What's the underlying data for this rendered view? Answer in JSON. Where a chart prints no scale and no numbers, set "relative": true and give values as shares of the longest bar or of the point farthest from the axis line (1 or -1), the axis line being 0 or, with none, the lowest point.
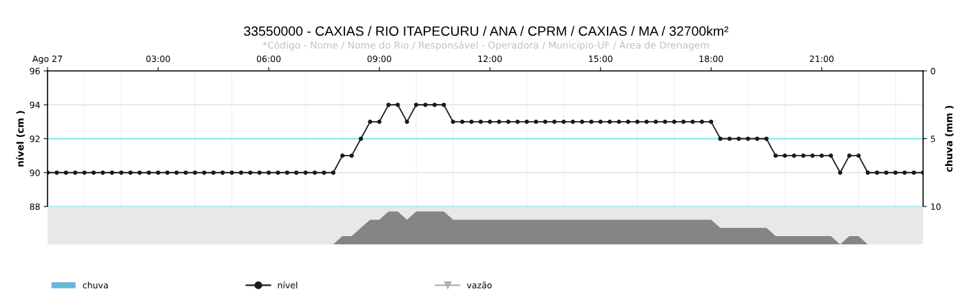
{
  "chart_data": [
    {
      "type": "line",
      "title": "33550000 - CAXIAS / RIO ITAPECURU / ANA / CPRM / CAXIAS / MA / 32700km²",
      "subtitle": "*Código - Nome / Nome do Rio / Responsável - Operadora / Município-UF / Área de Drenagem",
      "ylabel": "nível (cm )",
      "y2label": "chuva (mm )",
      "x": [
        0,
        0.25,
        0.5,
        0.75,
        1,
        1.25,
        1.5,
        1.75,
        2,
        2.25,
        2.5,
        2.75,
        3,
        3.25,
        3.5,
        3.75,
        4,
        4.25,
        4.5,
        4.75,
        5,
        5.25,
        5.5,
        5.75,
        6,
        6.25,
        6.5,
        6.75,
        7,
        7.25,
        7.5,
        7.75,
        8,
        8.25,
        8.5,
        8.75,
        9,
        9.25,
        9.5,
        9.75,
        10,
        10.25,
        10.5,
        10.75,
        11,
        11.25,
        11.5,
        11.75,
        12,
        12.25,
        12.5,
        12.75,
        13,
        13.25,
        13.5,
        13.75,
        14,
        14.25,
        14.5,
        14.75,
        15,
        15.25,
        15.5,
        15.75,
        16,
        16.25,
        16.5,
        16.75,
        17,
        17.25,
        17.5,
        17.75,
        18,
        18.25,
        18.5,
        18.75,
        19,
        19.25,
        19.5,
        19.75,
        20,
        20.25,
        20.5,
        20.75,
        21,
        21.25,
        21.5,
        21.75,
        22,
        22.25,
        22.5,
        22.75,
        23,
        23.25,
        23.5,
        23.75
      ],
      "series": [
        {
          "name": "chuva",
          "type": "bar",
          "color": "#6ab6de",
          "values": [
            null,
            null,
            null,
            null,
            null,
            null,
            null,
            null,
            null,
            null,
            null,
            null,
            null,
            null,
            null,
            null,
            null,
            null,
            null,
            null,
            null,
            null,
            null,
            null,
            null,
            null,
            null,
            null,
            null,
            null,
            null,
            null,
            null,
            null,
            null,
            null,
            null,
            null,
            null,
            null,
            null,
            null,
            null,
            null,
            null,
            null,
            null,
            null,
            null,
            null,
            null,
            null,
            null,
            null,
            null,
            null,
            null,
            null,
            null,
            null,
            null,
            null,
            null,
            null,
            null,
            null,
            null,
            null,
            null,
            null,
            null,
            null,
            null,
            null,
            null,
            null,
            null,
            null,
            null,
            null,
            null,
            null,
            null,
            null,
            null,
            null,
            null,
            null,
            null,
            null,
            null,
            null,
            null,
            null,
            null,
            null
          ]
        },
        {
          "name": "nível",
          "type": "line",
          "color": "#1a1a1a",
          "marker": "circle",
          "line_style": "solid",
          "values": [
            90,
            90,
            90,
            90,
            90,
            90,
            90,
            90,
            90,
            90,
            90,
            90,
            90,
            90,
            90,
            90,
            90,
            90,
            90,
            90,
            90,
            90,
            90,
            90,
            90,
            90,
            90,
            90,
            90,
            90,
            90,
            90,
            91,
            91,
            92,
            93,
            93,
            94,
            94,
            93,
            94,
            94,
            94,
            94,
            93,
            93,
            93,
            93,
            93,
            93,
            93,
            93,
            93,
            93,
            93,
            93,
            93,
            93,
            93,
            93,
            93,
            93,
            93,
            93,
            93,
            93,
            93,
            93,
            93,
            93,
            93,
            93,
            93,
            92,
            92,
            92,
            92,
            92,
            92,
            91,
            91,
            91,
            91,
            91,
            91,
            91,
            90,
            91,
            91,
            90,
            90,
            90,
            90,
            90,
            90,
            90
          ]
        },
        {
          "name": "vazão",
          "type": "line",
          "color": "#a8b4b4",
          "marker": "triangle",
          "line_style": "solid",
          "values": [
            null,
            null,
            null,
            null,
            null,
            null,
            null,
            null,
            null,
            null,
            null,
            null,
            null,
            null,
            null,
            null,
            null,
            null,
            null,
            null,
            null,
            null,
            null,
            null,
            null,
            null,
            null,
            null,
            null,
            null,
            null,
            null,
            null,
            null,
            null,
            null,
            null,
            null,
            null,
            null,
            null,
            null,
            null,
            null,
            null,
            null,
            null,
            null,
            null,
            null,
            null,
            null,
            null,
            null,
            null,
            null,
            null,
            null,
            null,
            null,
            null,
            null,
            null,
            null,
            null,
            null,
            null,
            null,
            null,
            null,
            null,
            null,
            null,
            null,
            null,
            null,
            null,
            null,
            null,
            null,
            null,
            null,
            null,
            null,
            null,
            null,
            null,
            null,
            null,
            null,
            null,
            null,
            null,
            null,
            null,
            null
          ]
        }
      ],
      "xlim": [
        0,
        23.75
      ],
      "xticks": [
        {
          "value": 0,
          "label": "Ago 27"
        },
        {
          "value": 3,
          "label": "03:00"
        },
        {
          "value": 6,
          "label": "06:00"
        },
        {
          "value": 9,
          "label": "09:00"
        },
        {
          "value": 12,
          "label": "12:00"
        },
        {
          "value": 15,
          "label": "15:00"
        },
        {
          "value": 18,
          "label": "18:00"
        },
        {
          "value": 21,
          "label": "21:00"
        }
      ],
      "ylim": [
        88,
        96
      ],
      "yticks": [
        88,
        90,
        92,
        94,
        96
      ],
      "y2lim": [
        10,
        0
      ],
      "y2ticks": [
        0,
        5,
        10
      ],
      "ref_lines": [
        {
          "axis": "y",
          "value": 92,
          "color": "#7fe8ee"
        },
        {
          "axis": "y",
          "value": 88,
          "color": "#7fe8ee"
        }
      ],
      "grid": true,
      "legend": "bottom"
    },
    {
      "type": "area",
      "relative": true,
      "categories": [
        null,
        null,
        null,
        null,
        null,
        null,
        null,
        null,
        null,
        null,
        null,
        null,
        null,
        null,
        null,
        null,
        null,
        null,
        null,
        null,
        null,
        null,
        null,
        null,
        null,
        null,
        null,
        null,
        null,
        null,
        null,
        null,
        null,
        null,
        null,
        null,
        null,
        null,
        null,
        null,
        null,
        null,
        null,
        null,
        null,
        null,
        null,
        null,
        null,
        null,
        null,
        null,
        null,
        null,
        null,
        null,
        null,
        null,
        null,
        null,
        null,
        null,
        null,
        null,
        null,
        null,
        null,
        null,
        null,
        null,
        null,
        null,
        null,
        null,
        null,
        null,
        null,
        null,
        null,
        null,
        null,
        null,
        null,
        null,
        null,
        null,
        null,
        null,
        null,
        null,
        null,
        null,
        null,
        null,
        null,
        null
      ],
      "color": "#858585",
      "values": [
        0,
        0,
        0,
        0,
        0,
        0,
        0,
        0,
        0,
        0,
        0,
        0,
        0,
        0,
        0,
        0,
        0,
        0,
        0,
        0,
        0,
        0,
        0,
        0,
        0,
        0,
        0,
        0,
        0,
        0,
        0,
        0,
        0.25,
        0.25,
        0.5,
        0.75,
        0.75,
        1,
        1,
        0.75,
        1,
        1,
        1,
        1,
        0.75,
        0.75,
        0.75,
        0.75,
        0.75,
        0.75,
        0.75,
        0.75,
        0.75,
        0.75,
        0.75,
        0.75,
        0.75,
        0.75,
        0.75,
        0.75,
        0.75,
        0.75,
        0.75,
        0.75,
        0.75,
        0.75,
        0.75,
        0.75,
        0.75,
        0.75,
        0.75,
        0.75,
        0.75,
        0.5,
        0.5,
        0.5,
        0.5,
        0.5,
        0.5,
        0.25,
        0.25,
        0.25,
        0.25,
        0.25,
        0.25,
        0.25,
        0,
        0.25,
        0.25,
        0,
        0,
        0,
        0,
        0,
        0,
        0
      ]
    }
  ]
}
